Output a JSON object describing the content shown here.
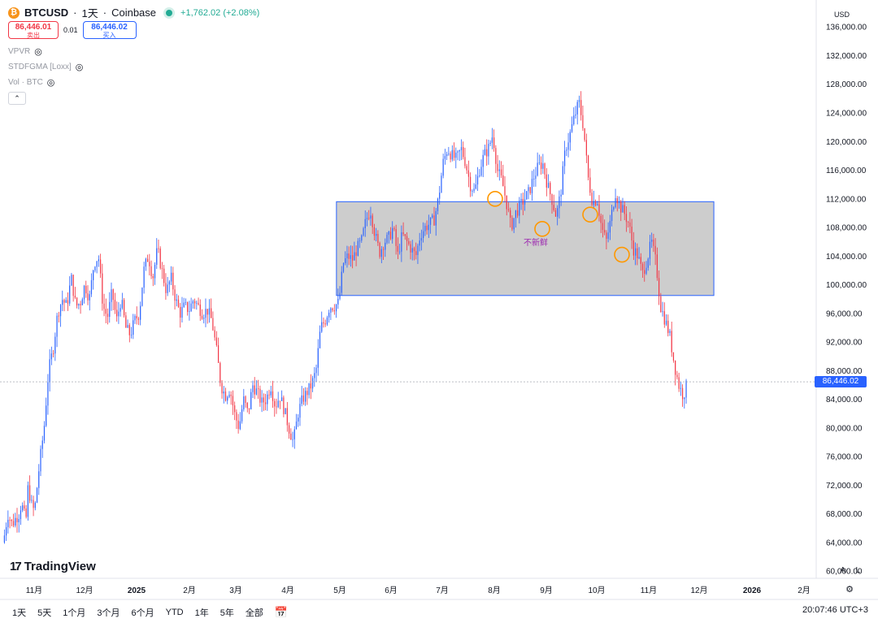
{
  "header": {
    "coin_glyph": "₿",
    "symbol": "BTCUSD",
    "interval": "1天",
    "exchange": "Coinbase",
    "change": "+1,762.02 (+2.08%)"
  },
  "quote": {
    "sell_price": "86,446.01",
    "sell_label": "卖出",
    "spread": "0.01",
    "buy_price": "86,446.02",
    "buy_label": "买入"
  },
  "indicators": [
    {
      "name": "VPVR"
    },
    {
      "name": "STDFGMA [Loxx]"
    },
    {
      "name": "Vol · BTC"
    }
  ],
  "currency": "USD",
  "last_price_tag": "86,446.02",
  "annotation": "不新鲜",
  "branding": "TradingView",
  "ranges": [
    "1天",
    "5天",
    "1个月",
    "3个月",
    "6个月",
    "YTD",
    "1年",
    "5年",
    "全部"
  ],
  "time_display": "20:07:46 UTC+3",
  "axis_buttons": {
    "auto": "A",
    "log": "L"
  },
  "colors": {
    "up": "#2962ff",
    "down": "#f23645",
    "zone": "#c8c8c8",
    "zone_border": "#2962ff",
    "marker": "#ff9800"
  },
  "chart_data": {
    "type": "candlestick",
    "y_ticks": [
      136000,
      132000,
      128000,
      124000,
      120000,
      116000,
      112000,
      108000,
      104000,
      100000,
      96000,
      92000,
      88000,
      84000,
      80000,
      76000,
      72000,
      68000,
      64000,
      60000
    ],
    "y_tick_labels": [
      "136,000.00",
      "132,000.00",
      "128,000.00",
      "124,000.00",
      "120,000.00",
      "116,000.00",
      "112,000.00",
      "108,000.00",
      "104,000.00",
      "100,000.00",
      "96,000.00",
      "92,000.00",
      "88,000.00",
      "84,000.00",
      "80,000.00",
      "76,000.00",
      "72,000.00",
      "68,000.00",
      "64,000.00",
      "60,000.00"
    ],
    "x_labels": [
      "11月",
      "12月",
      "2025",
      "2月",
      "3月",
      "4月",
      "5月",
      "6月",
      "7月",
      "8月",
      "9月",
      "10月",
      "11月",
      "12月",
      "2026",
      "2月"
    ],
    "ylim": [
      59000,
      137500
    ],
    "close_path": [
      [
        0,
        64000
      ],
      [
        4,
        68000
      ],
      [
        8,
        66500
      ],
      [
        10,
        67200
      ],
      [
        14,
        68000
      ],
      [
        16,
        69500
      ],
      [
        20,
        67000
      ],
      [
        22,
        72000
      ],
      [
        24,
        70000
      ],
      [
        26,
        68500
      ],
      [
        28,
        69000
      ],
      [
        32,
        75000
      ],
      [
        36,
        80000
      ],
      [
        40,
        88000
      ],
      [
        44,
        91000
      ],
      [
        48,
        96000
      ],
      [
        52,
        98000
      ],
      [
        56,
        97000
      ],
      [
        60,
        101000
      ],
      [
        64,
        97000
      ],
      [
        68,
        97500
      ],
      [
        72,
        100000
      ],
      [
        76,
        98000
      ],
      [
        80,
        103000
      ],
      [
        84,
        104000
      ],
      [
        88,
        97000
      ],
      [
        92,
        95500
      ],
      [
        96,
        99000
      ],
      [
        100,
        95000
      ],
      [
        104,
        98000
      ],
      [
        108,
        94000
      ],
      [
        112,
        93000
      ],
      [
        116,
        95000
      ],
      [
        120,
        96000
      ],
      [
        124,
        102000
      ],
      [
        128,
        104000
      ],
      [
        132,
        101000
      ],
      [
        136,
        105000
      ],
      [
        140,
        102000
      ],
      [
        144,
        99000
      ],
      [
        148,
        101000
      ],
      [
        152,
        98000
      ],
      [
        156,
        96000
      ],
      [
        160,
        97000
      ],
      [
        164,
        96500
      ],
      [
        168,
        98000
      ],
      [
        172,
        97000
      ],
      [
        176,
        96000
      ],
      [
        180,
        96500
      ],
      [
        184,
        95000
      ],
      [
        188,
        91000
      ],
      [
        192,
        86000
      ],
      [
        196,
        84500
      ],
      [
        200,
        85500
      ],
      [
        204,
        82000
      ],
      [
        208,
        80000
      ],
      [
        212,
        84000
      ],
      [
        216,
        82000
      ],
      [
        220,
        86000
      ],
      [
        224,
        85000
      ],
      [
        228,
        83500
      ],
      [
        232,
        84000
      ],
      [
        236,
        86000
      ],
      [
        240,
        83000
      ],
      [
        244,
        84500
      ],
      [
        248,
        82500
      ],
      [
        252,
        80000
      ],
      [
        256,
        78000
      ],
      [
        260,
        82000
      ],
      [
        264,
        84000
      ],
      [
        268,
        85000
      ],
      [
        272,
        86000
      ],
      [
        276,
        88000
      ],
      [
        280,
        94000
      ],
      [
        284,
        95000
      ],
      [
        288,
        97000
      ],
      [
        292,
        97000
      ],
      [
        296,
        97500
      ],
      [
        300,
        103000
      ],
      [
        304,
        104000
      ],
      [
        308,
        103500
      ],
      [
        312,
        105000
      ],
      [
        316,
        106000
      ],
      [
        320,
        109000
      ],
      [
        324,
        110500
      ],
      [
        328,
        107000
      ],
      [
        332,
        104500
      ],
      [
        336,
        106000
      ],
      [
        340,
        106500
      ],
      [
        344,
        108000
      ],
      [
        348,
        104000
      ],
      [
        352,
        107000
      ],
      [
        356,
        106000
      ],
      [
        360,
        105000
      ],
      [
        364,
        104000
      ],
      [
        368,
        107000
      ],
      [
        372,
        108000
      ],
      [
        376,
        108500
      ],
      [
        380,
        109000
      ],
      [
        384,
        112000
      ],
      [
        388,
        117000
      ],
      [
        392,
        119000
      ],
      [
        396,
        118000
      ],
      [
        400,
        117500
      ],
      [
        404,
        119000
      ],
      [
        408,
        117000
      ],
      [
        412,
        114000
      ],
      [
        416,
        113000
      ],
      [
        420,
        116000
      ],
      [
        424,
        118000
      ],
      [
        428,
        119000
      ],
      [
        432,
        121000
      ],
      [
        436,
        116000
      ],
      [
        440,
        114500
      ],
      [
        444,
        111500
      ],
      [
        448,
        108000
      ],
      [
        452,
        110000
      ],
      [
        456,
        111000
      ],
      [
        460,
        112000
      ],
      [
        464,
        113000
      ],
      [
        468,
        115000
      ],
      [
        472,
        116500
      ],
      [
        476,
        117000
      ],
      [
        480,
        114000
      ],
      [
        484,
        112000
      ],
      [
        488,
        109500
      ],
      [
        492,
        113000
      ],
      [
        496,
        119000
      ],
      [
        500,
        121000
      ],
      [
        504,
        123500
      ],
      [
        508,
        125500
      ],
      [
        512,
        122000
      ],
      [
        516,
        115000
      ],
      [
        520,
        111500
      ],
      [
        524,
        112000
      ],
      [
        528,
        108000
      ],
      [
        532,
        106000
      ],
      [
        536,
        109000
      ],
      [
        540,
        113000
      ],
      [
        544,
        111000
      ],
      [
        548,
        110000
      ],
      [
        552,
        108500
      ],
      [
        556,
        105000
      ],
      [
        560,
        104000
      ],
      [
        564,
        101500
      ],
      [
        568,
        103500
      ],
      [
        572,
        106000
      ],
      [
        576,
        103000
      ],
      [
        580,
        97000
      ],
      [
        584,
        95000
      ],
      [
        588,
        93000
      ],
      [
        592,
        89000
      ],
      [
        596,
        86000
      ],
      [
        600,
        84500
      ],
      [
        604,
        86446
      ]
    ],
    "zone": {
      "x_start": 294,
      "x_end": 627,
      "y_top": 111600,
      "y_bottom": 98500
    },
    "circled_lows": [
      112000,
      107800,
      109800,
      104200
    ],
    "last_price": 86446.02
  }
}
